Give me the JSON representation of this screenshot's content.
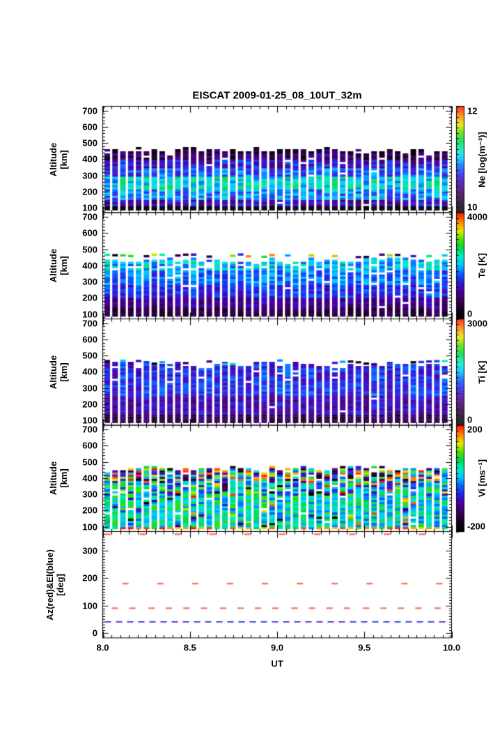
{
  "chart_data": {
    "type": "heatmap",
    "title": "EISCAT 2009-01-25_08_10UT_32m",
    "x_axis": {
      "label": "UT",
      "min": 8.0,
      "max": 10.0,
      "major_tick_values": [
        8.0,
        8.5,
        9.0,
        9.5,
        10.0
      ],
      "major_tick_labels": [
        "8.0",
        "8.5",
        "9.0",
        "9.5",
        "10.0"
      ],
      "minor_step": 0.05
    },
    "altitude_axis": {
      "label_line1": "Altitude",
      "label_line2": "[km]",
      "min": 100,
      "max": 700,
      "major_tick_values": [
        100,
        200,
        300,
        400,
        500,
        600,
        700
      ],
      "minor_step": 20,
      "display_min": 70,
      "display_max": 727
    },
    "angle_axis": {
      "label_line1": "Az(red)&El(blue)",
      "label_line2": "[deg]",
      "major_tick_values": [
        0,
        100,
        200,
        300
      ],
      "minor_step": 10,
      "display_min": -18,
      "display_max": 370
    },
    "colormap": {
      "stops": [
        [
          0.0,
          "#000000"
        ],
        [
          0.08,
          "#1a0022"
        ],
        [
          0.18,
          "#3c005c"
        ],
        [
          0.27,
          "#4b00a8"
        ],
        [
          0.35,
          "#2a20e8"
        ],
        [
          0.43,
          "#0565ff"
        ],
        [
          0.51,
          "#00c8ff"
        ],
        [
          0.59,
          "#00eec0"
        ],
        [
          0.67,
          "#00d848"
        ],
        [
          0.75,
          "#52e000"
        ],
        [
          0.83,
          "#e6e600"
        ],
        [
          0.9,
          "#ff9400"
        ],
        [
          1.0,
          "#ff1400"
        ]
      ]
    },
    "seed": 20090125,
    "columns": 44,
    "gate_km": 13,
    "alt_base_km": 85,
    "panels": [
      {
        "key": "ne",
        "colorbar_title": "Ne [log(m⁻³)]",
        "colorbar_top_label": "12",
        "colorbar_bottom_label": "10",
        "value_range": [
          10,
          12
        ],
        "col_top": [
          438,
          468
        ],
        "short_p": 0.08,
        "short_top": [
          412,
          436
        ],
        "bands": [
          {
            "alt": [
              85,
              100
            ],
            "t": [
              0.0,
              0.07
            ],
            "missing": 0
          },
          {
            "alt": [
              100,
              145
            ],
            "t": [
              0.15,
              0.4
            ],
            "missing": 0.02
          },
          {
            "alt": [
              145,
              210
            ],
            "t": [
              0.33,
              0.56
            ],
            "missing": 0
          },
          {
            "alt": [
              210,
              290
            ],
            "t": [
              0.42,
              0.66
            ],
            "missing": 0,
            "outlier_p": 0.2,
            "outlier_t": [
              0.56,
              0.68
            ]
          },
          {
            "alt": [
              290,
              340
            ],
            "t": [
              0.3,
              0.5
            ],
            "missing": 0.01
          },
          {
            "alt": [
              340,
              390
            ],
            "t": [
              0.2,
              0.42
            ],
            "missing": 0.03
          },
          {
            "alt": [
              390,
              430
            ],
            "t": [
              0.08,
              0.3
            ],
            "missing": 0.05,
            "outlier_p": 0.15,
            "outlier_t": [
              0.0,
              0.07
            ]
          },
          {
            "alt": [
              430,
              470
            ],
            "t": [
              0.02,
              0.26
            ],
            "missing": 0.15,
            "outlier_p": 0.3,
            "outlier_t": [
              0.0,
              0.06
            ]
          }
        ]
      },
      {
        "key": "te",
        "colorbar_title": "Te [K]",
        "colorbar_top_label": "4000",
        "colorbar_bottom_label": "0",
        "value_range": [
          0,
          4000
        ],
        "col_top": [
          408,
          442
        ],
        "detached": {
          "p": 0.62,
          "alt": [
            445,
            463
          ],
          "t": [
            0.0,
            1.0
          ]
        },
        "bands": [
          {
            "alt": [
              85,
              125
            ],
            "t": [
              0.06,
              0.2
            ],
            "missing": 0
          },
          {
            "alt": [
              125,
              200
            ],
            "t": [
              0.15,
              0.3
            ],
            "missing": 0.01
          },
          {
            "alt": [
              200,
              280
            ],
            "t": [
              0.28,
              0.43
            ],
            "missing": 0.02
          },
          {
            "alt": [
              280,
              360
            ],
            "t": [
              0.35,
              0.52
            ],
            "missing": 0.03
          },
          {
            "alt": [
              360,
              445
            ],
            "t": [
              0.4,
              0.62
            ],
            "missing": 0.1
          }
        ]
      },
      {
        "key": "ti",
        "colorbar_title": "Ti [K]",
        "colorbar_top_label": "3000",
        "colorbar_bottom_label": "0",
        "value_range": [
          0,
          3000
        ],
        "col_top": [
          420,
          458
        ],
        "detached": {
          "p": 0.5,
          "alt": [
            438,
            465
          ],
          "t": [
            0.0,
            0.62
          ]
        },
        "bands": [
          {
            "alt": [
              85,
              125
            ],
            "t": [
              0.08,
              0.22
            ],
            "missing": 0
          },
          {
            "alt": [
              125,
              250
            ],
            "t": [
              0.2,
              0.36
            ],
            "missing": 0.01
          },
          {
            "alt": [
              250,
              350
            ],
            "t": [
              0.28,
              0.45
            ],
            "missing": 0.02
          },
          {
            "alt": [
              350,
              458
            ],
            "t": [
              0.26,
              0.45
            ],
            "missing": 0.06
          }
        ]
      },
      {
        "key": "vi",
        "colorbar_title": "Vi [ms⁻¹]",
        "colorbar_top_label": "200",
        "colorbar_bottom_label": "-200",
        "value_range": [
          -200,
          200
        ],
        "col_top": [
          435,
          470
        ],
        "bands": [
          {
            "alt": [
              85,
              95
            ],
            "t": [
              0.45,
              1.0
            ],
            "missing": 0,
            "outlier_p": 0.5,
            "outlier_t": [
              0.84,
              1.0
            ]
          },
          {
            "alt": [
              95,
              290
            ],
            "t": [
              0.42,
              0.72
            ],
            "missing": 0.02,
            "outlier_p": 0.12,
            "outlier_t": [
              0.0,
              1.0
            ]
          },
          {
            "alt": [
              290,
              380
            ],
            "t": [
              0.3,
              0.8
            ],
            "missing": 0.03,
            "outlier_p": 0.25,
            "outlier_t": [
              0.0,
              1.0
            ]
          },
          {
            "alt": [
              380,
              470
            ],
            "t": [
              0.0,
              1.0
            ],
            "missing": 0.05
          }
        ]
      }
    ],
    "azel_panel": {
      "elevation": {
        "color": "#5353d8",
        "value": 40,
        "style": "dashed"
      },
      "azimuth": {
        "color": "#ff7160",
        "series": [
          {
            "value": 360,
            "times": [
              8.03,
              8.23,
              8.43,
              8.63,
              8.83,
              9.03,
              9.23,
              9.43,
              9.63,
              9.83
            ]
          },
          {
            "value": 180,
            "times": [
              8.13,
              8.33,
              8.53,
              8.73,
              8.93,
              9.13,
              9.33,
              9.53,
              9.73,
              9.93
            ]
          },
          {
            "value": 90,
            "times": [
              8.07,
              8.17,
              8.28,
              8.38,
              8.48,
              8.58,
              8.69,
              8.79,
              8.89,
              8.99,
              9.1,
              9.2,
              9.3,
              9.4,
              9.51,
              9.61,
              9.71,
              9.81,
              9.92
            ]
          }
        ]
      }
    }
  }
}
